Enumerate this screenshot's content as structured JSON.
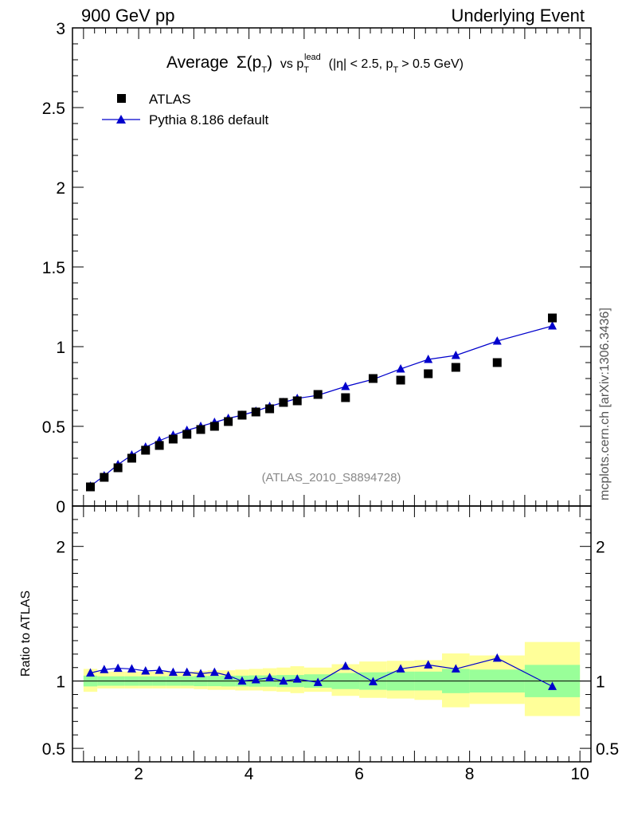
{
  "header": {
    "left": "900 GeV pp",
    "right": "Underlying Event"
  },
  "title": {
    "prefix": "Average",
    "sigma": "Σ(p",
    "sigma_sub": "T",
    "close": ")",
    "vs": "vs p",
    "lead_sup": "lead",
    "lead_sub": "T",
    "cuts_a": "(|η| < 2.5, p",
    "cuts_sub": "T",
    "cuts_b": "> 0.5 GeV)"
  },
  "side_label": "mcplots.cern.ch [arXiv:1306.3436]",
  "analysis_label": "(ATLAS_2010_S8894728)",
  "ratio_ylabel": "Ratio to ATLAS",
  "colors": {
    "mc": "#0000cc",
    "data": "#000000",
    "band_inner": "#99ff99",
    "band_outer": "#ffff99"
  },
  "chart_data": [
    {
      "type": "scatter",
      "panel": "main",
      "ylim": [
        0,
        3
      ],
      "xlim": [
        0.8,
        10.2
      ],
      "yticks": [
        "0",
        "0.5",
        "1",
        "1.5",
        "2",
        "2.5",
        "3"
      ],
      "legend_placement": "top-left",
      "series": [
        {
          "name": "ATLAS",
          "marker": "square",
          "x": [
            1.125,
            1.375,
            1.625,
            1.875,
            2.125,
            2.375,
            2.625,
            2.875,
            3.125,
            3.375,
            3.625,
            3.875,
            4.125,
            4.375,
            4.625,
            4.875,
            5.25,
            5.75,
            6.25,
            6.75,
            7.25,
            7.75,
            8.5,
            9.5
          ],
          "y": [
            0.12,
            0.18,
            0.24,
            0.3,
            0.35,
            0.38,
            0.42,
            0.45,
            0.48,
            0.5,
            0.53,
            0.57,
            0.59,
            0.61,
            0.65,
            0.66,
            0.7,
            0.68,
            0.8,
            0.79,
            0.83,
            0.87,
            0.9,
            1.18
          ]
        },
        {
          "name": "Pythia 8.186 default",
          "marker": "triangle",
          "x": [
            1.125,
            1.375,
            1.625,
            1.875,
            2.125,
            2.375,
            2.625,
            2.875,
            3.125,
            3.375,
            3.625,
            3.875,
            4.125,
            4.375,
            4.625,
            4.875,
            5.25,
            5.75,
            6.25,
            6.75,
            7.25,
            7.75,
            8.5,
            9.5
          ],
          "y": [
            0.125,
            0.19,
            0.26,
            0.32,
            0.37,
            0.41,
            0.445,
            0.475,
            0.5,
            0.525,
            0.55,
            0.57,
            0.595,
            0.625,
            0.65,
            0.675,
            0.695,
            0.75,
            0.795,
            0.86,
            0.92,
            0.945,
            1.035,
            1.13
          ]
        }
      ]
    },
    {
      "type": "line",
      "panel": "ratio",
      "ylabel": "Ratio to ATLAS",
      "ylim": [
        0.4,
        2.3
      ],
      "yticks": [
        "0.5",
        "1",
        "2"
      ],
      "xticks": [
        "2",
        "4",
        "6",
        "8",
        "10"
      ],
      "xlim": [
        0.8,
        10.2
      ],
      "bins": [
        [
          1,
          1.25
        ],
        [
          1.25,
          1.5
        ],
        [
          1.5,
          1.75
        ],
        [
          1.75,
          2
        ],
        [
          2,
          2.25
        ],
        [
          2.25,
          2.5
        ],
        [
          2.5,
          2.75
        ],
        [
          2.75,
          3
        ],
        [
          3,
          3.25
        ],
        [
          3.25,
          3.5
        ],
        [
          3.5,
          3.75
        ],
        [
          3.75,
          4
        ],
        [
          4,
          4.25
        ],
        [
          4.25,
          4.5
        ],
        [
          4.5,
          4.75
        ],
        [
          4.75,
          5
        ],
        [
          5,
          5.5
        ],
        [
          5.5,
          6
        ],
        [
          6,
          6.5
        ],
        [
          6.5,
          7
        ],
        [
          7,
          7.5
        ],
        [
          7.5,
          8
        ],
        [
          8,
          9
        ],
        [
          9,
          10
        ]
      ],
      "band_inner": [
        [
          0.96,
          1.04
        ],
        [
          0.965,
          1.035
        ],
        [
          0.965,
          1.035
        ],
        [
          0.965,
          1.035
        ],
        [
          0.965,
          1.035
        ],
        [
          0.965,
          1.035
        ],
        [
          0.965,
          1.035
        ],
        [
          0.965,
          1.035
        ],
        [
          0.962,
          1.038
        ],
        [
          0.962,
          1.038
        ],
        [
          0.96,
          1.04
        ],
        [
          0.96,
          1.04
        ],
        [
          0.958,
          1.042
        ],
        [
          0.958,
          1.042
        ],
        [
          0.955,
          1.045
        ],
        [
          0.955,
          1.045
        ],
        [
          0.95,
          1.05
        ],
        [
          0.94,
          1.06
        ],
        [
          0.935,
          1.065
        ],
        [
          0.93,
          1.07
        ],
        [
          0.93,
          1.07
        ],
        [
          0.91,
          1.09
        ],
        [
          0.915,
          1.085
        ],
        [
          0.88,
          1.12
        ]
      ],
      "band_outer": [
        [
          0.92,
          1.09
        ],
        [
          0.945,
          1.07
        ],
        [
          0.945,
          1.07
        ],
        [
          0.945,
          1.07
        ],
        [
          0.945,
          1.07
        ],
        [
          0.945,
          1.07
        ],
        [
          0.945,
          1.07
        ],
        [
          0.945,
          1.07
        ],
        [
          0.94,
          1.075
        ],
        [
          0.935,
          1.08
        ],
        [
          0.935,
          1.08
        ],
        [
          0.93,
          1.085
        ],
        [
          0.93,
          1.09
        ],
        [
          0.925,
          1.095
        ],
        [
          0.92,
          1.1
        ],
        [
          0.91,
          1.11
        ],
        [
          0.92,
          1.1
        ],
        [
          0.89,
          1.125
        ],
        [
          0.875,
          1.145
        ],
        [
          0.87,
          1.15
        ],
        [
          0.86,
          1.155
        ],
        [
          0.805,
          1.205
        ],
        [
          0.83,
          1.19
        ],
        [
          0.74,
          1.29
        ]
      ],
      "series": [
        {
          "name": "Pythia 8.186 default",
          "x": [
            1.125,
            1.375,
            1.625,
            1.875,
            2.125,
            2.375,
            2.625,
            2.875,
            3.125,
            3.375,
            3.625,
            3.875,
            4.125,
            4.375,
            4.625,
            4.875,
            5.25,
            5.75,
            6.25,
            6.75,
            7.25,
            7.75,
            8.5,
            9.5
          ],
          "y": [
            1.06,
            1.085,
            1.095,
            1.09,
            1.075,
            1.08,
            1.065,
            1.065,
            1.055,
            1.065,
            1.04,
            1.0,
            1.01,
            1.025,
            1.0,
            1.015,
            0.99,
            1.11,
            0.995,
            1.09,
            1.12,
            1.09,
            1.17,
            0.96
          ]
        }
      ]
    }
  ],
  "layout_axes_x": {
    "label_values": [
      2,
      4,
      6,
      8,
      10
    ]
  }
}
